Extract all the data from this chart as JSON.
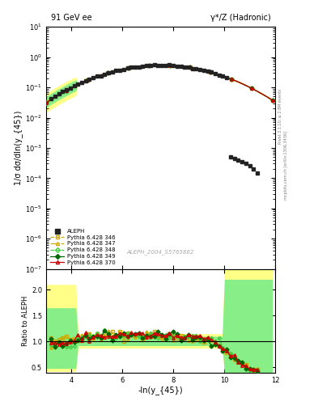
{
  "title_left": "91 GeV ee",
  "title_right": "γ*/Z (Hadronic)",
  "ylabel_main": "1/σ dσ/dln(y_{45})",
  "ylabel_ratio": "Ratio to ALEPH",
  "xlabel": "-ln(y_{45})",
  "xlim": [
    3.0,
    12.0
  ],
  "ylim_main": [
    1e-07,
    10
  ],
  "ylim_ratio": [
    0.4,
    2.4
  ],
  "watermark": "ALEPH_2004_S5765862",
  "side_label": "Rivet 3.1.10; ≥ 2.8M events",
  "side_label2": "mcplots.cern.ch [arXiv:1306.3436]",
  "background_color": "#ffffff",
  "aleph_color": "#222222",
  "p346_color": "#ccaa00",
  "p347_color": "#ccaa00",
  "p348_color": "#44cc44",
  "p349_color": "#006600",
  "p370_color": "#cc0000",
  "band_yellow": "#ffff88",
  "band_green": "#88ee88",
  "legend_entries": [
    "ALEPH",
    "Pythia 6.428 346",
    "Pythia 6.428 347",
    "Pythia 6.428 348",
    "Pythia 6.428 349",
    "Pythia 6.428 370"
  ],
  "xticks": [
    4,
    6,
    8,
    10,
    12
  ],
  "ratio_yticks": [
    0.5,
    1.0,
    1.5,
    2.0
  ]
}
